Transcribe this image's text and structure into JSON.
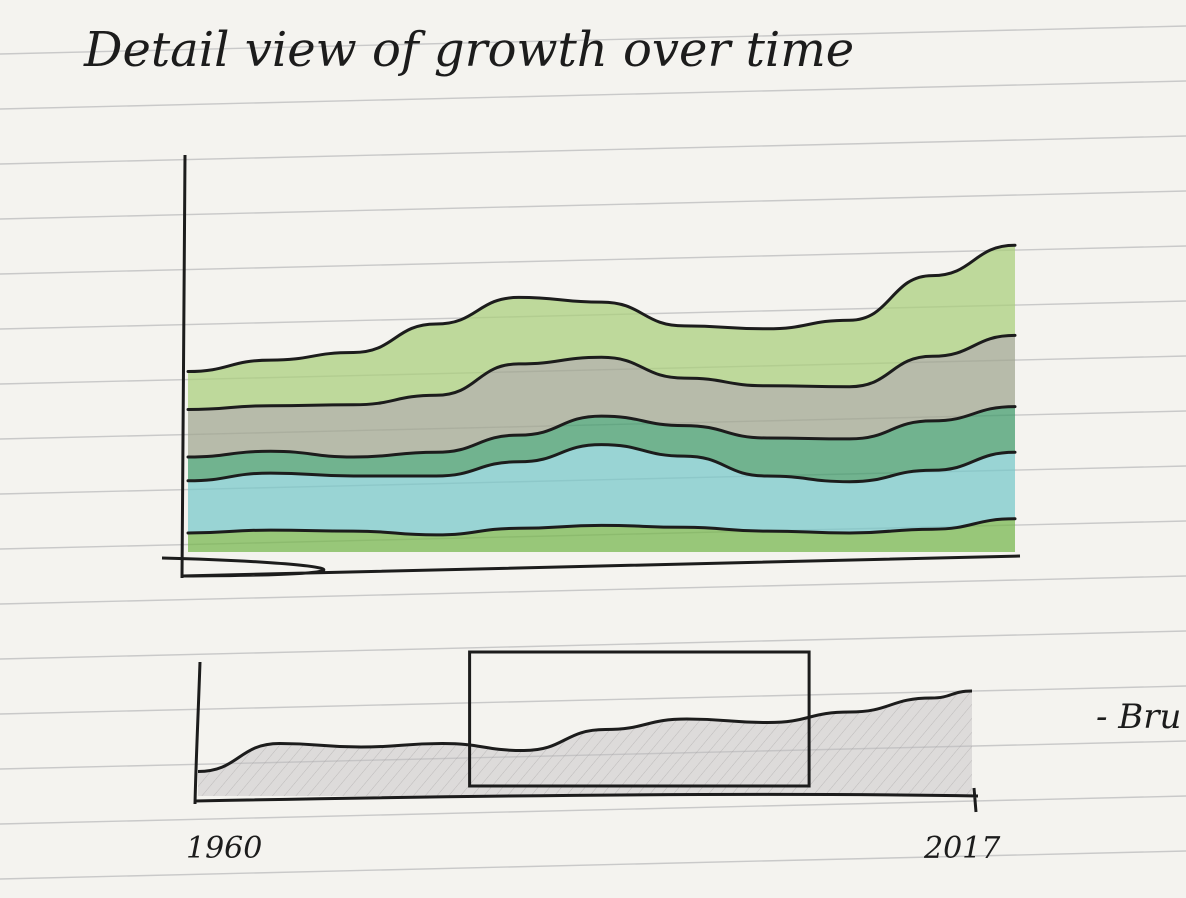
{
  "title": "Detail view of growth over time",
  "brush_note": "- Bru",
  "colors": {
    "paper": "#f4f3ef",
    "rule_line": "#c9c9c9",
    "ink": "#1c1c1c",
    "band_top": "#a9cf7a",
    "band_second": "#9fa58f",
    "band_middle": "#3f9a6a",
    "band_cyan": "#76c7c9",
    "band_bottom": "#74b54b",
    "context_fill": "#c2bec0"
  },
  "chart_data": [
    {
      "type": "area",
      "view": "detail",
      "stacked": true,
      "x": [
        0,
        1,
        2,
        3,
        4,
        5,
        6,
        7,
        8,
        9,
        10
      ],
      "series": [
        {
          "values": [
            20,
            23,
            22,
            18,
            25,
            28,
            26,
            22,
            20,
            24,
            35
          ]
        },
        {
          "values": [
            55,
            60,
            58,
            62,
            70,
            85,
            75,
            58,
            54,
            62,
            70
          ]
        },
        {
          "values": [
            25,
            23,
            20,
            25,
            28,
            30,
            32,
            40,
            45,
            52,
            48
          ]
        },
        {
          "values": [
            50,
            48,
            55,
            60,
            75,
            62,
            50,
            55,
            55,
            68,
            75
          ]
        },
        {
          "values": [
            40,
            48,
            55,
            75,
            70,
            58,
            55,
            60,
            70,
            85,
            95
          ]
        }
      ],
      "grid": false,
      "axes": "left-bottom"
    },
    {
      "type": "area",
      "view": "context",
      "x": [
        1960,
        1966,
        1972,
        1978,
        1984,
        1990,
        1996,
        2002,
        2008,
        2014,
        2017
      ],
      "values": [
        14,
        30,
        28,
        30,
        26,
        38,
        44,
        42,
        48,
        56,
        60
      ],
      "xlim": [
        1960,
        2017
      ],
      "tick_labels": [
        "1960",
        "2017"
      ],
      "brush": {
        "from": 1980,
        "to": 2005
      }
    }
  ]
}
